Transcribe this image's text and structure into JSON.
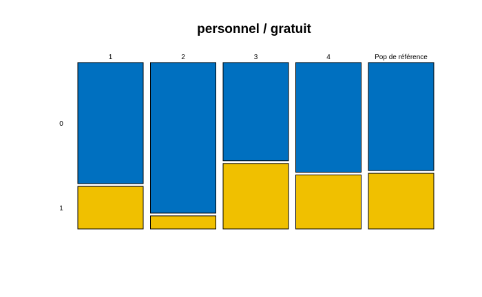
{
  "chart_data": {
    "type": "mosaic",
    "title": "personnel / gratuit",
    "xlabel": "",
    "ylabel": "",
    "categories": [
      "1",
      "2",
      "3",
      "4",
      "Pop de référence"
    ],
    "row_levels": [
      "0",
      "1"
    ],
    "series": [
      {
        "name": "0",
        "color": "#0070C0",
        "values": [
          0.74,
          0.92,
          0.6,
          0.67,
          0.66
        ]
      },
      {
        "name": "1",
        "color": "#F0C000",
        "values": [
          0.26,
          0.08,
          0.4,
          0.33,
          0.34
        ]
      }
    ],
    "ylim": [
      0,
      1
    ],
    "grid": false,
    "legend": "none"
  }
}
